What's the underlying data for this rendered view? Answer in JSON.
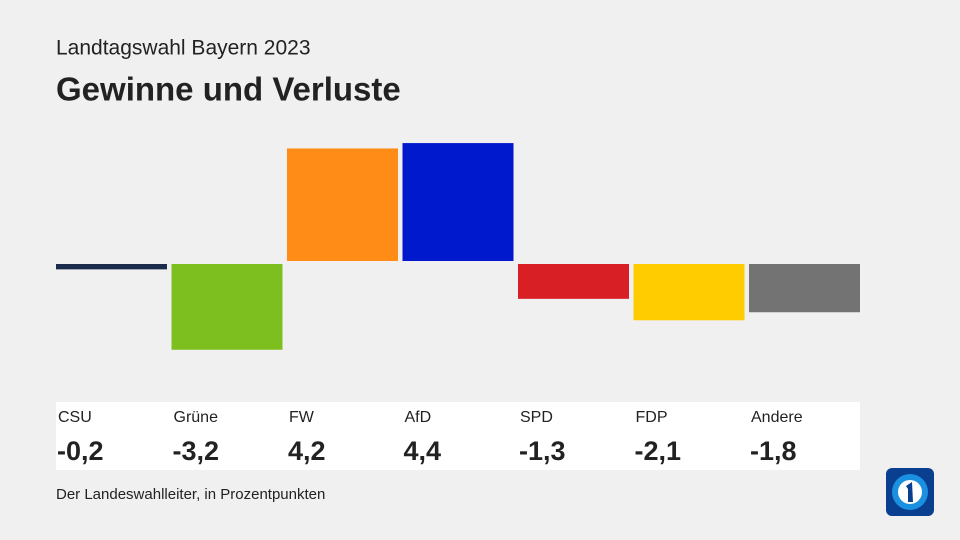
{
  "chart_data": {
    "type": "bar",
    "subtitle": "Landtagswahl Bayern 2023",
    "title": "Gewinne und Verluste",
    "categories": [
      "CSU",
      "Grüne",
      "FW",
      "AfD",
      "SPD",
      "FDP",
      "Andere"
    ],
    "values": [
      -0.2,
      -3.2,
      4.2,
      4.4,
      -1.3,
      -2.1,
      -1.8
    ],
    "value_labels": [
      "-0,2",
      "-3,2",
      "4,2",
      "4,4",
      "-1,3",
      "-2,1",
      "-1,8"
    ],
    "colors": [
      "#1b2b4b",
      "#7cbf1f",
      "#ff8c17",
      "#0019cc",
      "#d81f26",
      "#ffcc00",
      "#737373"
    ],
    "source": "Der Landeswahlleiter, in Prozentpunkten"
  }
}
